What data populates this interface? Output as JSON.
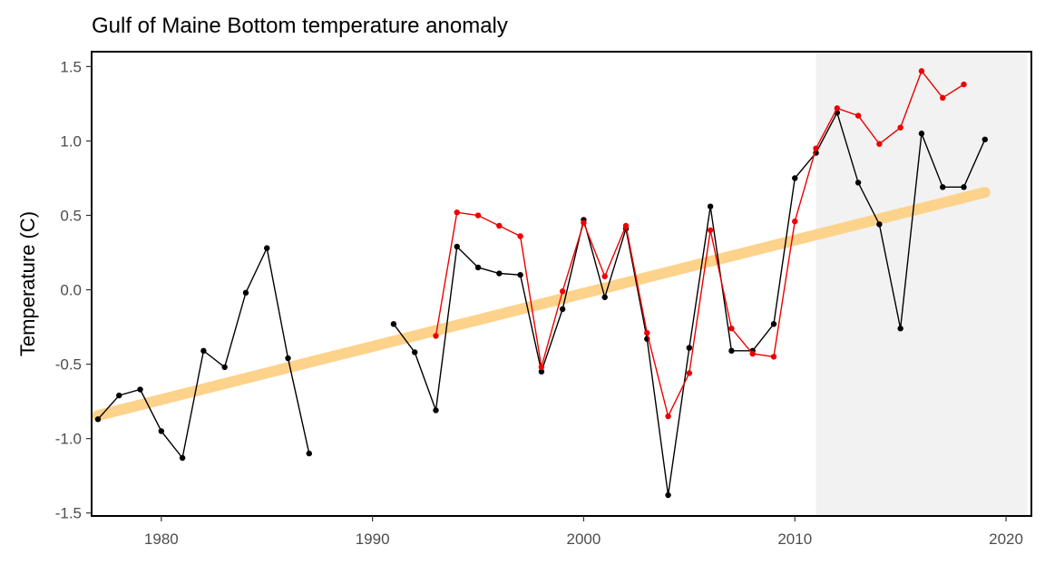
{
  "chart_data": {
    "type": "line",
    "title": "Gulf of Maine Bottom temperature anomaly",
    "xlabel": "",
    "ylabel": "Temperature (C)",
    "xlim": [
      1976.7,
      2021.2
    ],
    "ylim": [
      -1.52,
      1.6
    ],
    "x_ticks": [
      1980,
      1990,
      2000,
      2010,
      2020
    ],
    "y_ticks": [
      -1.5,
      -1.0,
      -0.5,
      0.0,
      0.5,
      1.0,
      1.5
    ],
    "y_tick_labels": [
      "-1.5",
      "-1.0",
      "-0.5",
      "0.0",
      "0.5",
      "1.0",
      "1.5"
    ],
    "shaded_region": {
      "x_start": 2011,
      "x_end": 2021,
      "color": "#f2f2f2"
    },
    "series": [
      {
        "color": "#000000",
        "segments": [
          {
            "x": [
              1977,
              1978,
              1979,
              1980,
              1981,
              1982,
              1983,
              1984,
              1985,
              1986,
              1987
            ],
            "y": [
              -0.87,
              -0.71,
              -0.67,
              -0.95,
              -1.13,
              -0.41,
              -0.52,
              -0.02,
              0.28,
              -0.46,
              -1.1
            ]
          },
          {
            "x": [
              1991,
              1992,
              1993,
              1994,
              1995,
              1996,
              1997,
              1998,
              1999,
              2000,
              2001,
              2002,
              2003,
              2004,
              2005,
              2006,
              2007,
              2008,
              2009,
              2010,
              2011,
              2012,
              2013,
              2014,
              2015,
              2016,
              2017,
              2018,
              2019
            ],
            "y": [
              -0.23,
              -0.42,
              -0.81,
              0.29,
              0.15,
              0.11,
              0.1,
              -0.55,
              -0.13,
              0.47,
              -0.05,
              0.41,
              -0.33,
              -1.38,
              -0.39,
              0.56,
              -0.41,
              -0.41,
              -0.23,
              0.75,
              0.92,
              1.19,
              0.72,
              0.44,
              -0.26,
              1.05,
              0.69,
              0.69,
              1.01
            ]
          }
        ]
      },
      {
        "color": "#ee0000",
        "segments": [
          {
            "x": [
              1993,
              1994,
              1995,
              1996,
              1997,
              1998,
              1999,
              2000,
              2001,
              2002,
              2003,
              2004,
              2005,
              2006,
              2007,
              2008,
              2009,
              2010,
              2011,
              2012,
              2013,
              2014,
              2015,
              2016,
              2017,
              2018
            ],
            "y": [
              -0.31,
              0.52,
              0.5,
              0.43,
              0.36,
              -0.52,
              -0.01,
              0.45,
              0.09,
              0.43,
              -0.29,
              -0.85,
              -0.56,
              0.4,
              -0.26,
              -0.43,
              -0.45,
              0.46,
              0.95,
              1.22,
              1.17,
              0.98,
              1.09,
              1.47,
              1.29,
              1.38
            ]
          }
        ]
      }
    ],
    "trend_line": {
      "color": "#fdd28a",
      "x": [
        1977,
        2019
      ],
      "y": [
        -0.845,
        0.655
      ]
    }
  }
}
